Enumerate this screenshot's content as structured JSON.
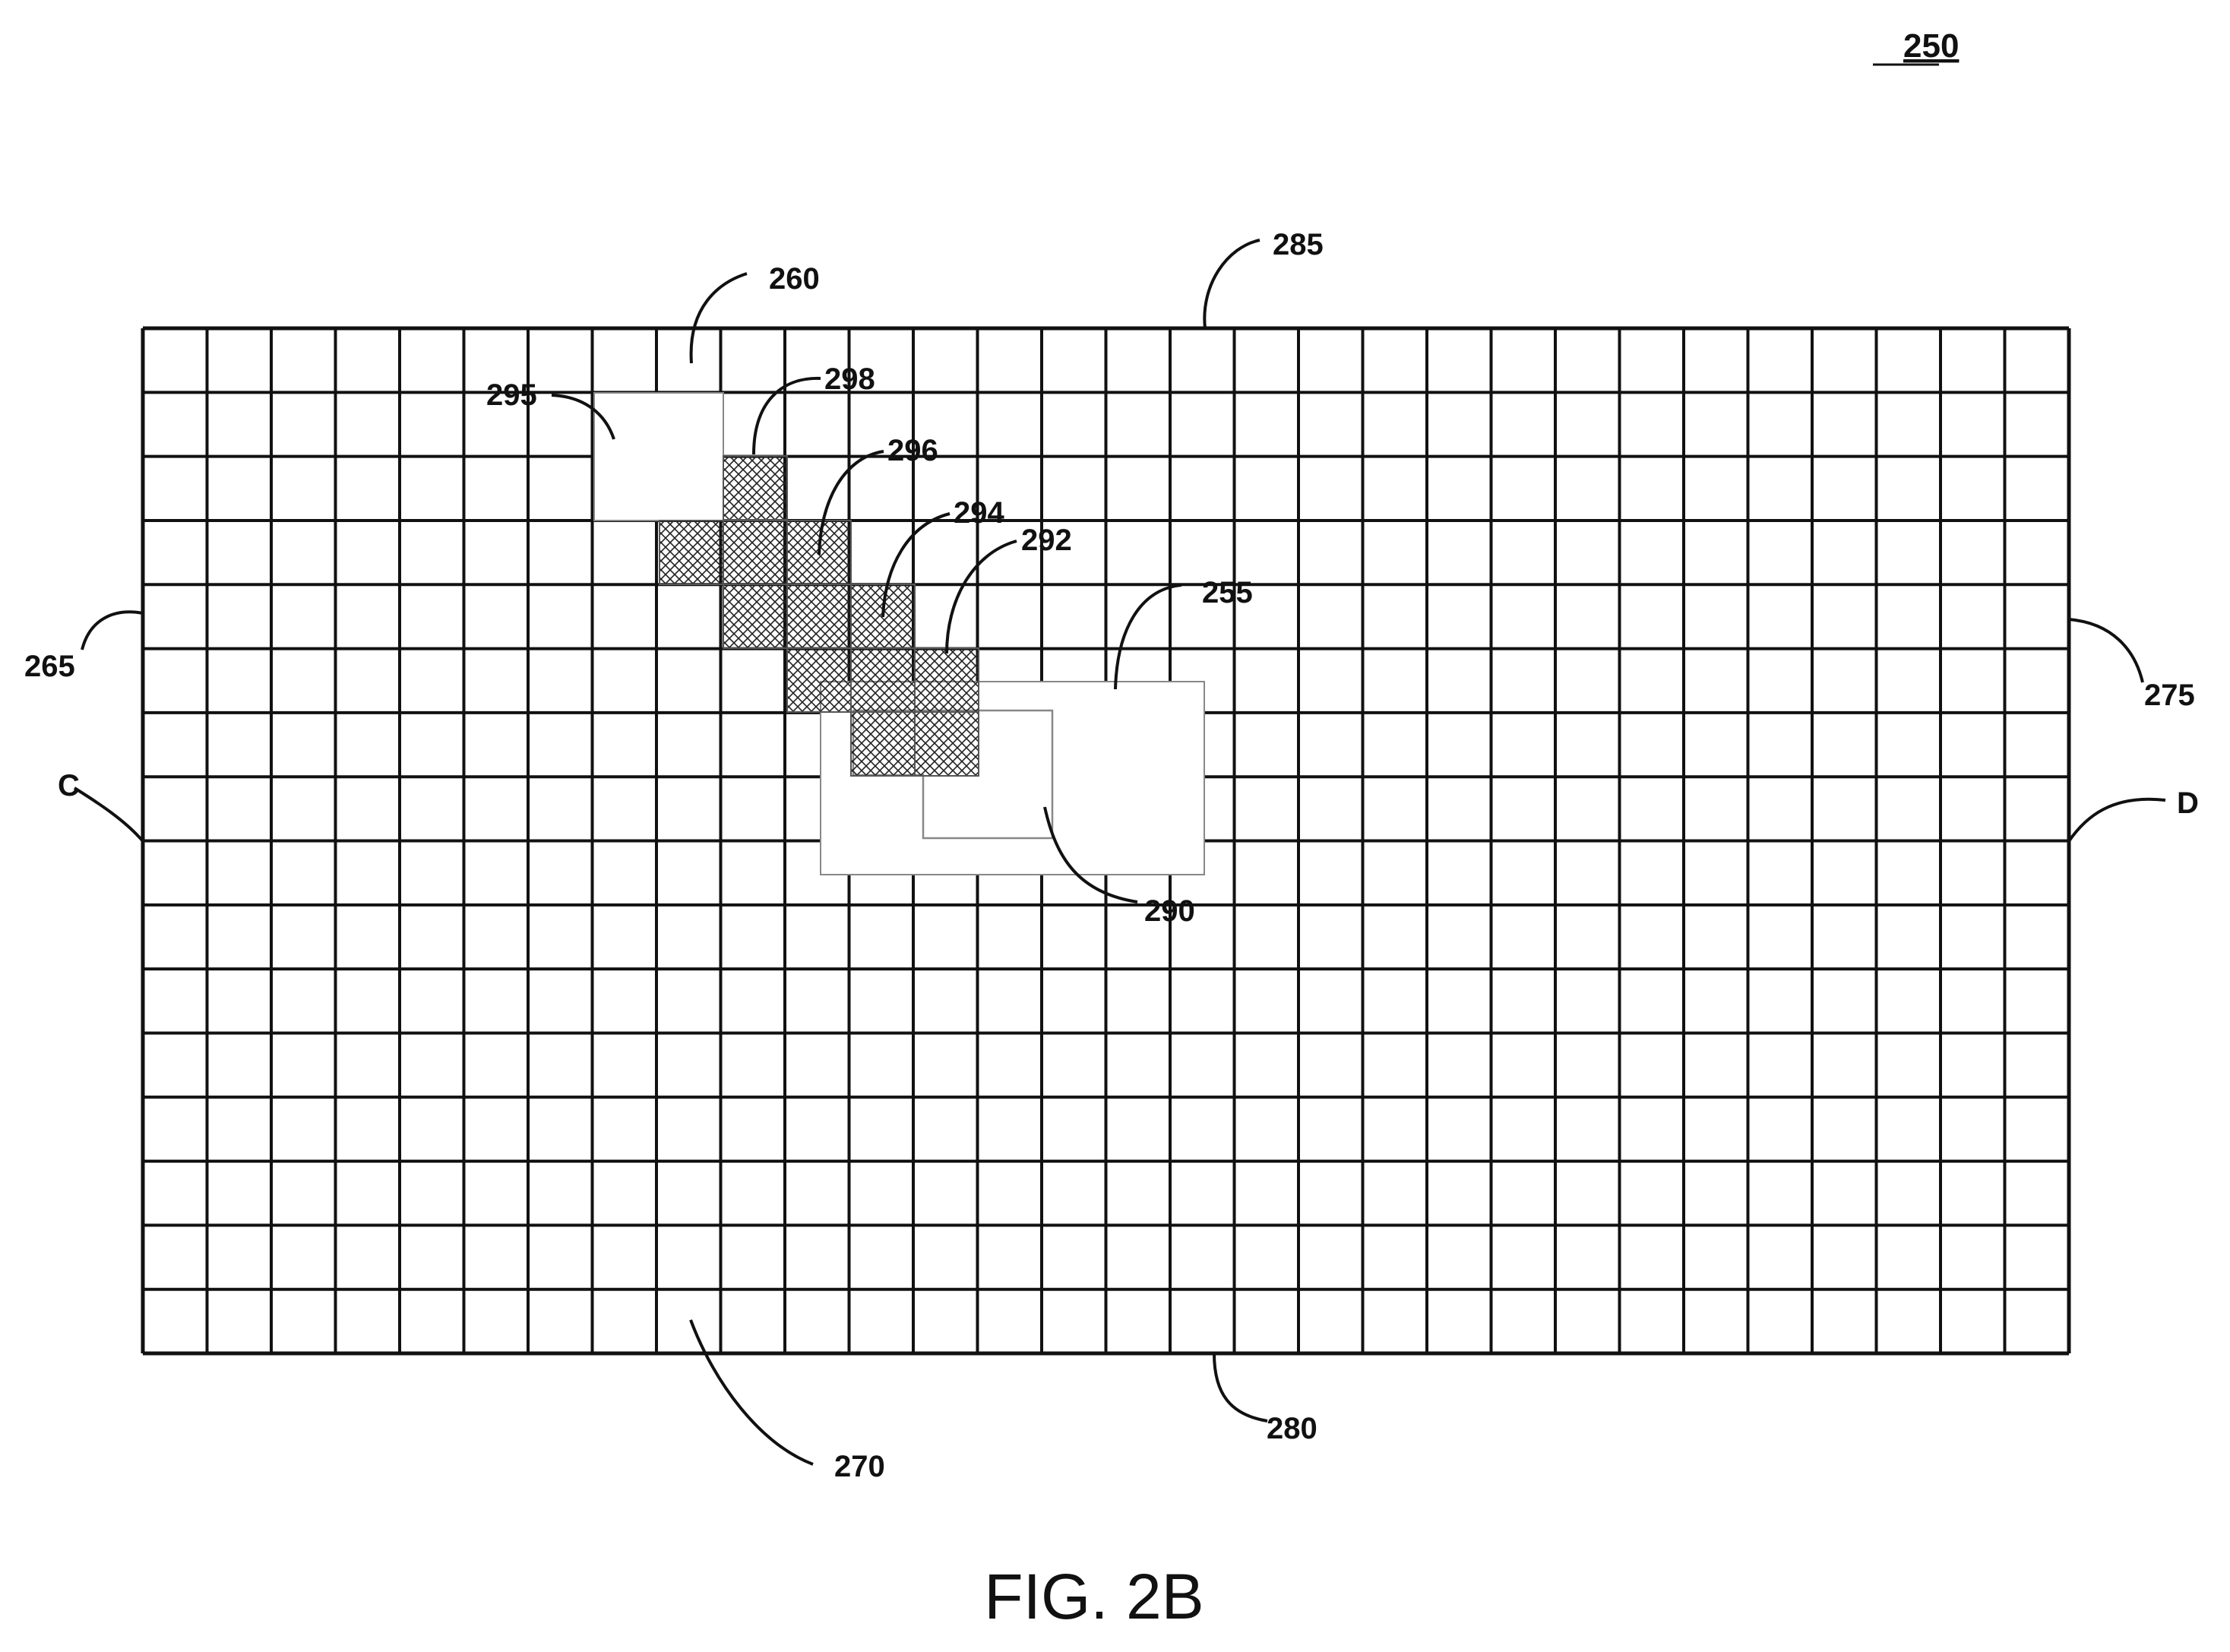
{
  "figure_number": "250",
  "caption": "FIG. 2B",
  "labels": {
    "l255": "255",
    "l260": "260",
    "l265": "265",
    "l270": "270",
    "l275": "275",
    "l280": "280",
    "l285": "285",
    "l290": "290",
    "l292": "292",
    "l294": "294",
    "l295": "295",
    "l296": "296",
    "l298": "298",
    "C": "C",
    "D": "D"
  },
  "grid": {
    "columns": 30,
    "rows": 16
  },
  "colors": {
    "line": "#111111",
    "hatch": "#222222",
    "region_border": "#888888",
    "background": "#ffffff"
  }
}
